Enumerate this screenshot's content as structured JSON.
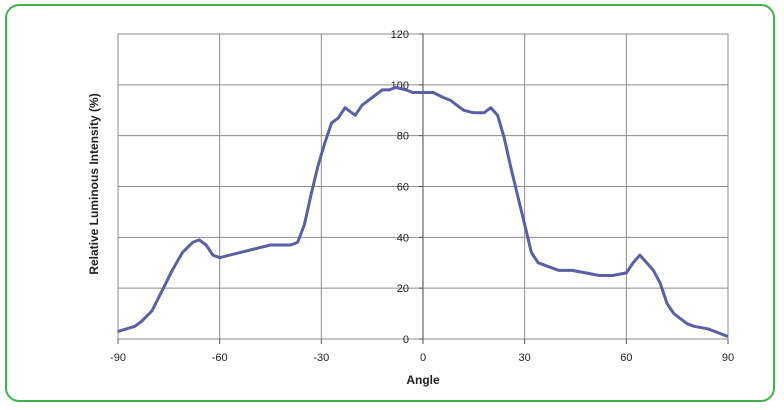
{
  "chart_data": {
    "type": "line",
    "title": "",
    "xlabel": "Angle",
    "ylabel": "Relative Luminous Intensity (%)",
    "xlim": [
      -90,
      90
    ],
    "ylim": [
      0,
      120
    ],
    "x_ticks": [
      -90,
      -60,
      -30,
      0,
      30,
      60,
      90
    ],
    "y_ticks": [
      0,
      20,
      40,
      60,
      80,
      100,
      120
    ],
    "grid": true,
    "colors": {
      "line": "#5b5fa6",
      "grid": "#8c8c8c",
      "border": "#3fb24a"
    },
    "series": [
      {
        "x": [
          -90,
          -85,
          -83,
          -80,
          -77,
          -74,
          -71,
          -68,
          -66,
          -64,
          -62,
          -60,
          -57,
          -54,
          -51,
          -48,
          -45,
          -42,
          -39,
          -37,
          -35,
          -33,
          -31,
          -29,
          -27,
          -25,
          -23,
          -20,
          -18,
          -15,
          -12,
          -10,
          -8,
          -5,
          -3,
          0,
          3,
          6,
          8,
          10,
          12,
          15,
          18,
          20,
          22,
          24,
          26,
          28,
          30,
          32,
          34,
          36,
          40,
          44,
          48,
          52,
          56,
          60,
          62,
          64,
          66,
          68,
          70,
          72,
          74,
          78,
          80,
          84,
          88,
          90
        ],
        "y": [
          3,
          5,
          7,
          11,
          19,
          27,
          34,
          38,
          39,
          37,
          33,
          32,
          33,
          34,
          35,
          36,
          37,
          37,
          37,
          38,
          45,
          57,
          68,
          77,
          85,
          87,
          91,
          88,
          92,
          95,
          98,
          98,
          99,
          98,
          97,
          97,
          97,
          95,
          94,
          92,
          90,
          89,
          89,
          91,
          88,
          79,
          67,
          56,
          45,
          34,
          30,
          29,
          27,
          27,
          26,
          25,
          25,
          26,
          30,
          33,
          30,
          27,
          22,
          14,
          10,
          6,
          5,
          4,
          2,
          1
        ]
      }
    ]
  }
}
